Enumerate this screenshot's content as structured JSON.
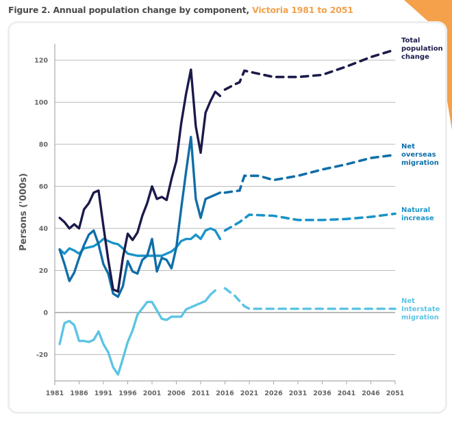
{
  "header": {
    "title_prefix": "Figure 2. Annual population change by component, ",
    "title_highlight": "Victoria 1981 to 2051"
  },
  "colors": {
    "accent_orange": "#f5a04a",
    "total": "#1b1a4a",
    "overseas": "#0f6ea8",
    "natural": "#1a93c9",
    "interstate": "#5cc4e4",
    "grid": "#b9b9b9"
  },
  "chart_data": {
    "type": "line",
    "title": "Annual population change by component, Victoria 1981 to 2051",
    "xlabel": "",
    "ylabel": "Persons ('000s)",
    "xlim": [
      1981,
      2051
    ],
    "ylim": [
      -30,
      125
    ],
    "x_ticks": [
      "1981",
      "1986",
      "1991",
      "1996",
      "2001",
      "2006",
      "2011",
      "2016",
      "2021",
      "2026",
      "2031",
      "2036",
      "2041",
      "2046",
      "2051"
    ],
    "y_ticks": [
      "-20",
      "0",
      "20",
      "40",
      "60",
      "80",
      "100",
      "120"
    ],
    "grid": true,
    "legend_placement": "right (inline labels at line ends)",
    "series": [
      {
        "name": "Total population change",
        "key": "total",
        "historical": [
          [
            1982,
            45
          ],
          [
            1983,
            43
          ],
          [
            1984,
            40
          ],
          [
            1985,
            42
          ],
          [
            1986,
            40
          ],
          [
            1987,
            49
          ],
          [
            1988,
            52
          ],
          [
            1989,
            57
          ],
          [
            1990,
            58
          ],
          [
            1991,
            41
          ],
          [
            1992,
            25
          ],
          [
            1993,
            11
          ],
          [
            1994,
            10
          ],
          [
            1995,
            26
          ],
          [
            1996,
            37.5
          ],
          [
            1997,
            34.5
          ],
          [
            1998,
            38
          ],
          [
            1999,
            46
          ],
          [
            2000,
            52
          ],
          [
            2001,
            60
          ],
          [
            2002,
            54
          ],
          [
            2003,
            55
          ],
          [
            2004,
            53.5
          ],
          [
            2005,
            63.5
          ],
          [
            2006,
            72
          ],
          [
            2007,
            90
          ],
          [
            2008,
            104
          ],
          [
            2009,
            115.5
          ],
          [
            2010,
            88.5
          ],
          [
            2011,
            76
          ],
          [
            2012,
            95
          ],
          [
            2013,
            100.5
          ],
          [
            2014,
            105
          ],
          [
            2015,
            103
          ]
        ],
        "projected": [
          [
            2016,
            106
          ],
          [
            2018,
            108.5
          ],
          [
            2019,
            109.5
          ],
          [
            2020,
            115
          ],
          [
            2021,
            114.5
          ],
          [
            2023,
            113.5
          ],
          [
            2026,
            112
          ],
          [
            2031,
            112
          ],
          [
            2036,
            113
          ],
          [
            2041,
            117
          ],
          [
            2046,
            121.5
          ],
          [
            2051,
            125
          ]
        ]
      },
      {
        "name": "Net overseas migration",
        "key": "overseas",
        "historical": [
          [
            1982,
            30
          ],
          [
            1983,
            23
          ],
          [
            1984,
            15
          ],
          [
            1985,
            19
          ],
          [
            1986,
            26
          ],
          [
            1987,
            32
          ],
          [
            1988,
            37
          ],
          [
            1989,
            39
          ],
          [
            1990,
            32.5
          ],
          [
            1991,
            23
          ],
          [
            1992,
            18.5
          ],
          [
            1993,
            9
          ],
          [
            1994,
            7.5
          ],
          [
            1995,
            12.5
          ],
          [
            1996,
            24.5
          ],
          [
            1997,
            19.5
          ],
          [
            1998,
            18.5
          ],
          [
            1999,
            25
          ],
          [
            2000,
            27
          ],
          [
            2001,
            35
          ],
          [
            2002,
            19.5
          ],
          [
            2003,
            26
          ],
          [
            2004,
            25
          ],
          [
            2005,
            21
          ],
          [
            2006,
            31
          ],
          [
            2007,
            49.5
          ],
          [
            2008,
            67
          ],
          [
            2009,
            83.5
          ],
          [
            2010,
            54
          ],
          [
            2011,
            45
          ],
          [
            2012,
            54
          ],
          [
            2013,
            55
          ],
          [
            2014,
            56
          ],
          [
            2015,
            57
          ]
        ],
        "projected": [
          [
            2016,
            57
          ],
          [
            2019,
            58
          ],
          [
            2020,
            65
          ],
          [
            2023,
            65
          ],
          [
            2026,
            63
          ],
          [
            2031,
            65
          ],
          [
            2036,
            68
          ],
          [
            2041,
            70.5
          ],
          [
            2046,
            73.5
          ],
          [
            2051,
            75
          ]
        ]
      },
      {
        "name": "Natural increase",
        "key": "natural",
        "historical": [
          [
            1982,
            30
          ],
          [
            1983,
            28
          ],
          [
            1984,
            30.5
          ],
          [
            1985,
            29.5
          ],
          [
            1986,
            28
          ],
          [
            1987,
            30.5
          ],
          [
            1988,
            31
          ],
          [
            1989,
            31.5
          ],
          [
            1990,
            33
          ],
          [
            1991,
            35
          ],
          [
            1992,
            34
          ],
          [
            1993,
            33
          ],
          [
            1994,
            32.5
          ],
          [
            1995,
            30.5
          ],
          [
            1996,
            28
          ],
          [
            1997,
            27.5
          ],
          [
            1998,
            27
          ],
          [
            2000,
            27
          ],
          [
            2003,
            27
          ],
          [
            2005,
            29
          ],
          [
            2006,
            31
          ],
          [
            2007,
            34
          ],
          [
            2008,
            35
          ],
          [
            2009,
            35
          ],
          [
            2010,
            37
          ],
          [
            2011,
            35
          ],
          [
            2012,
            39
          ],
          [
            2013,
            40
          ],
          [
            2014,
            39
          ],
          [
            2015,
            35
          ]
        ],
        "projected": [
          [
            2016,
            39
          ],
          [
            2019,
            43
          ],
          [
            2021,
            46.5
          ],
          [
            2026,
            46
          ],
          [
            2031,
            44
          ],
          [
            2036,
            44
          ],
          [
            2041,
            44.5
          ],
          [
            2046,
            45.5
          ],
          [
            2051,
            47
          ]
        ]
      },
      {
        "name": "Net Interstate migration",
        "key": "interstate",
        "historical": [
          [
            1982,
            -15
          ],
          [
            1983,
            -5
          ],
          [
            1984,
            -4
          ],
          [
            1985,
            -6
          ],
          [
            1986,
            -13.5
          ],
          [
            1987,
            -13.5
          ],
          [
            1988,
            -14
          ],
          [
            1989,
            -13
          ],
          [
            1990,
            -9
          ],
          [
            1991,
            -15
          ],
          [
            1992,
            -19
          ],
          [
            1993,
            -26
          ],
          [
            1994,
            -29.5
          ],
          [
            1995,
            -22
          ],
          [
            1996,
            -14
          ],
          [
            1997,
            -8.5
          ],
          [
            1998,
            -1
          ],
          [
            1999,
            2
          ],
          [
            2000,
            5
          ],
          [
            2001,
            5
          ],
          [
            2002,
            1
          ],
          [
            2003,
            -3
          ],
          [
            2004,
            -3.5
          ],
          [
            2005,
            -2
          ],
          [
            2006,
            -2
          ],
          [
            2007,
            -2
          ],
          [
            2008,
            1.5
          ],
          [
            2009,
            2.5
          ],
          [
            2010,
            3.5
          ],
          [
            2011,
            4.5
          ],
          [
            2012,
            5.5
          ],
          [
            2013,
            8.5
          ],
          [
            2014,
            10.5
          ]
        ],
        "projected": [
          [
            2016,
            11.5
          ],
          [
            2018,
            8
          ],
          [
            2020,
            3
          ],
          [
            2021,
            1.8
          ],
          [
            2026,
            1.8
          ],
          [
            2031,
            1.8
          ],
          [
            2036,
            1.8
          ],
          [
            2041,
            1.8
          ],
          [
            2046,
            1.8
          ],
          [
            2051,
            1.8
          ]
        ]
      }
    ]
  },
  "legend": {
    "total": [
      "Total",
      "population",
      "change"
    ],
    "overseas": [
      "Net",
      "overseas",
      "migration"
    ],
    "natural": [
      "Natural",
      "increase"
    ],
    "interstate": [
      "Net",
      "Interstate",
      "migration"
    ]
  }
}
